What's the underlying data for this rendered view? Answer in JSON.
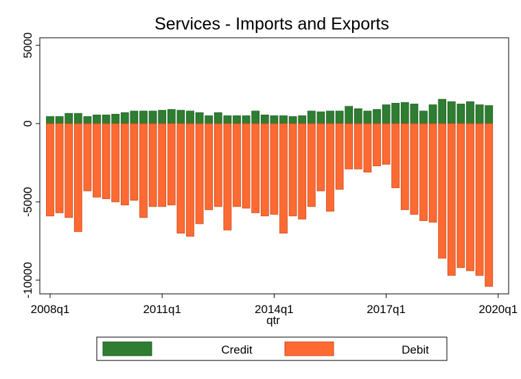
{
  "chart_data": {
    "type": "bar",
    "title": "Services - Imports and Exports",
    "xlabel": "qtr",
    "ylabel": "",
    "ylim": [
      -10500,
      5500
    ],
    "y_ticks": [
      5000,
      0,
      -5000,
      -10000
    ],
    "y_tick_labels": [
      "5000",
      "0",
      "-5000",
      "-10000"
    ],
    "x_ticks": [
      "2008q1",
      "2011q1",
      "2014q1",
      "2017q1",
      "2020q1"
    ],
    "categories": [
      "2008q1",
      "2008q2",
      "2008q3",
      "2008q4",
      "2009q1",
      "2009q2",
      "2009q3",
      "2009q4",
      "2010q1",
      "2010q2",
      "2010q3",
      "2010q4",
      "2011q1",
      "2011q2",
      "2011q3",
      "2011q4",
      "2012q1",
      "2012q2",
      "2012q3",
      "2012q4",
      "2013q1",
      "2013q2",
      "2013q3",
      "2013q4",
      "2014q1",
      "2014q2",
      "2014q3",
      "2014q4",
      "2015q1",
      "2015q2",
      "2015q3",
      "2015q4",
      "2016q1",
      "2016q2",
      "2016q3",
      "2016q4",
      "2017q1",
      "2017q2",
      "2017q3",
      "2017q4",
      "2018q1",
      "2018q2",
      "2018q3",
      "2018q4",
      "2019q1",
      "2019q2",
      "2019q3",
      "2019q4"
    ],
    "series": [
      {
        "name": "Credit",
        "color": "#2e7d32",
        "values": [
          450,
          450,
          650,
          650,
          450,
          550,
          550,
          600,
          700,
          800,
          800,
          800,
          850,
          900,
          850,
          800,
          700,
          500,
          700,
          500,
          500,
          500,
          800,
          550,
          500,
          500,
          450,
          500,
          800,
          750,
          800,
          800,
          1100,
          950,
          800,
          900,
          1200,
          1300,
          1350,
          1250,
          800,
          1200,
          1550,
          1400,
          1250,
          1400,
          1200,
          1150
        ]
      },
      {
        "name": "Debit",
        "color": "#ff6a33",
        "values": [
          -5900,
          -5700,
          -6000,
          -6900,
          -4300,
          -4700,
          -4800,
          -5000,
          -5200,
          -4900,
          -6000,
          -5300,
          -5300,
          -5200,
          -7000,
          -7200,
          -6400,
          -5500,
          -5300,
          -6800,
          -5300,
          -5400,
          -5700,
          -5900,
          -5800,
          -7000,
          -5900,
          -6100,
          -5300,
          -4300,
          -5600,
          -4200,
          -2900,
          -2900,
          -3100,
          -2700,
          -2600,
          -4100,
          -5500,
          -5800,
          -6200,
          -6300,
          -8600,
          -9700,
          -9200,
          -9400,
          -9700,
          -10400
        ]
      }
    ],
    "grid": false,
    "legend_position": "bottom"
  }
}
